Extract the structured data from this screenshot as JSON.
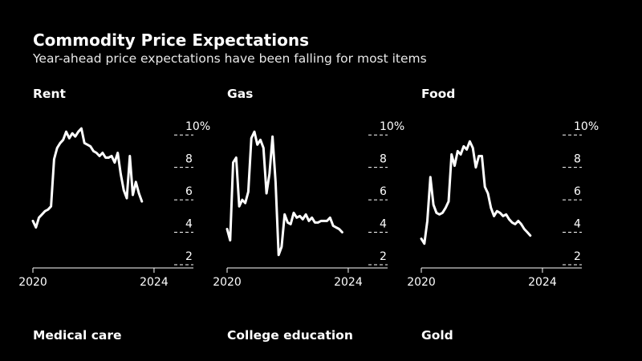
{
  "header": {
    "title": "Commodity Price Expectations",
    "subtitle": "Year-ahead price expectations have been falling for most items"
  },
  "colors": {
    "background": "#000000",
    "line": "#ffffff",
    "grid": "#ffffff"
  },
  "lower_panels": [
    "Medical care",
    "College education",
    "Gold"
  ],
  "chart_data": [
    {
      "type": "line",
      "title": "Rent",
      "xlabel": "",
      "ylabel": "",
      "xlim": [
        2020,
        2025.3
      ],
      "ylim": [
        1.8,
        11
      ],
      "x_ticks": [
        2020,
        2024
      ],
      "x_tick_labels": [
        "2020",
        "2024"
      ],
      "y_ticks": [
        2,
        4,
        6,
        8,
        10
      ],
      "y_tick_labels": [
        "2",
        "4",
        "6",
        "8",
        "10%"
      ],
      "x": [
        2020.0,
        2020.1,
        2020.2,
        2020.3,
        2020.4,
        2020.5,
        2020.6,
        2020.7,
        2020.8,
        2020.9,
        2021.0,
        2021.1,
        2021.2,
        2021.3,
        2021.4,
        2021.5,
        2021.6,
        2021.7,
        2021.8,
        2021.9,
        2022.0,
        2022.1,
        2022.2,
        2022.3,
        2022.4,
        2022.5,
        2022.6,
        2022.7,
        2022.8,
        2022.9,
        2023.0,
        2023.1,
        2023.2,
        2023.3,
        2023.4,
        2023.5,
        2023.6,
        2023.7,
        2023.8,
        2023.9,
        2024.0
      ],
      "values": [
        4.7,
        4.3,
        4.9,
        5.1,
        5.3,
        5.4,
        5.6,
        8.5,
        9.2,
        9.5,
        9.7,
        10.2,
        9.8,
        10.1,
        9.9,
        10.2,
        10.4,
        9.5,
        9.4,
        9.3,
        9.0,
        8.9,
        8.7,
        8.9,
        8.6,
        8.6,
        8.7,
        8.3,
        8.9,
        7.6,
        6.6,
        6.1,
        8.7,
        6.3,
        7.1,
        6.4,
        5.9,
        null,
        null,
        null,
        null
      ]
    },
    {
      "type": "line",
      "title": "Gas",
      "xlabel": "",
      "ylabel": "",
      "xlim": [
        2020,
        2025.3
      ],
      "ylim": [
        1.8,
        11
      ],
      "x_ticks": [
        2020,
        2024
      ],
      "x_tick_labels": [
        "2020",
        "2024"
      ],
      "y_ticks": [
        2,
        4,
        6,
        8,
        10
      ],
      "y_tick_labels": [
        "2",
        "4",
        "6",
        "8",
        "10%"
      ],
      "x": [
        2020.0,
        2020.1,
        2020.2,
        2020.3,
        2020.4,
        2020.5,
        2020.6,
        2020.7,
        2020.8,
        2020.9,
        2021.0,
        2021.1,
        2021.2,
        2021.3,
        2021.4,
        2021.5,
        2021.6,
        2021.7,
        2021.8,
        2021.9,
        2022.0,
        2022.1,
        2022.2,
        2022.3,
        2022.4,
        2022.5,
        2022.6,
        2022.7,
        2022.8,
        2022.9,
        2023.0,
        2023.1,
        2023.2,
        2023.3,
        2023.4,
        2023.5,
        2023.6,
        2023.7,
        2023.8,
        2023.9,
        2024.0
      ],
      "values": [
        4.2,
        3.5,
        8.3,
        8.6,
        5.6,
        6.0,
        5.8,
        6.5,
        9.8,
        10.2,
        9.4,
        9.7,
        9.2,
        6.4,
        7.6,
        9.9,
        7.1,
        2.6,
        3.1,
        5.1,
        4.6,
        4.5,
        5.2,
        4.9,
        5.0,
        4.8,
        5.1,
        4.7,
        4.9,
        4.6,
        4.6,
        4.7,
        4.7,
        4.7,
        4.9,
        4.4,
        4.3,
        4.2,
        4.0,
        null,
        null
      ]
    },
    {
      "type": "line",
      "title": "Food",
      "xlabel": "",
      "ylabel": "",
      "xlim": [
        2020,
        2025.3
      ],
      "ylim": [
        1.8,
        11
      ],
      "x_ticks": [
        2020,
        2024
      ],
      "x_tick_labels": [
        "2020",
        "2024"
      ],
      "y_ticks": [
        2,
        4,
        6,
        8,
        10
      ],
      "y_tick_labels": [
        "2",
        "4",
        "6",
        "8",
        "10%"
      ],
      "x": [
        2020.0,
        2020.1,
        2020.2,
        2020.3,
        2020.4,
        2020.5,
        2020.6,
        2020.7,
        2020.8,
        2020.9,
        2021.0,
        2021.1,
        2021.2,
        2021.3,
        2021.4,
        2021.5,
        2021.6,
        2021.7,
        2021.8,
        2021.9,
        2022.0,
        2022.1,
        2022.2,
        2022.3,
        2022.4,
        2022.5,
        2022.6,
        2022.7,
        2022.8,
        2022.9,
        2023.0,
        2023.1,
        2023.2,
        2023.3,
        2023.4,
        2023.5,
        2023.6,
        2023.7,
        2023.8,
        2023.9,
        2024.0
      ],
      "values": [
        3.6,
        3.3,
        4.7,
        7.4,
        5.7,
        5.2,
        5.1,
        5.2,
        5.5,
        5.9,
        8.8,
        8.1,
        9.0,
        8.8,
        9.3,
        9.1,
        9.6,
        9.2,
        8.0,
        8.7,
        8.7,
        6.8,
        6.4,
        5.5,
        5.0,
        5.3,
        5.2,
        5.0,
        5.1,
        4.8,
        4.6,
        4.5,
        4.7,
        4.5,
        4.2,
        4.0,
        3.8,
        null,
        null,
        null,
        null
      ]
    }
  ]
}
